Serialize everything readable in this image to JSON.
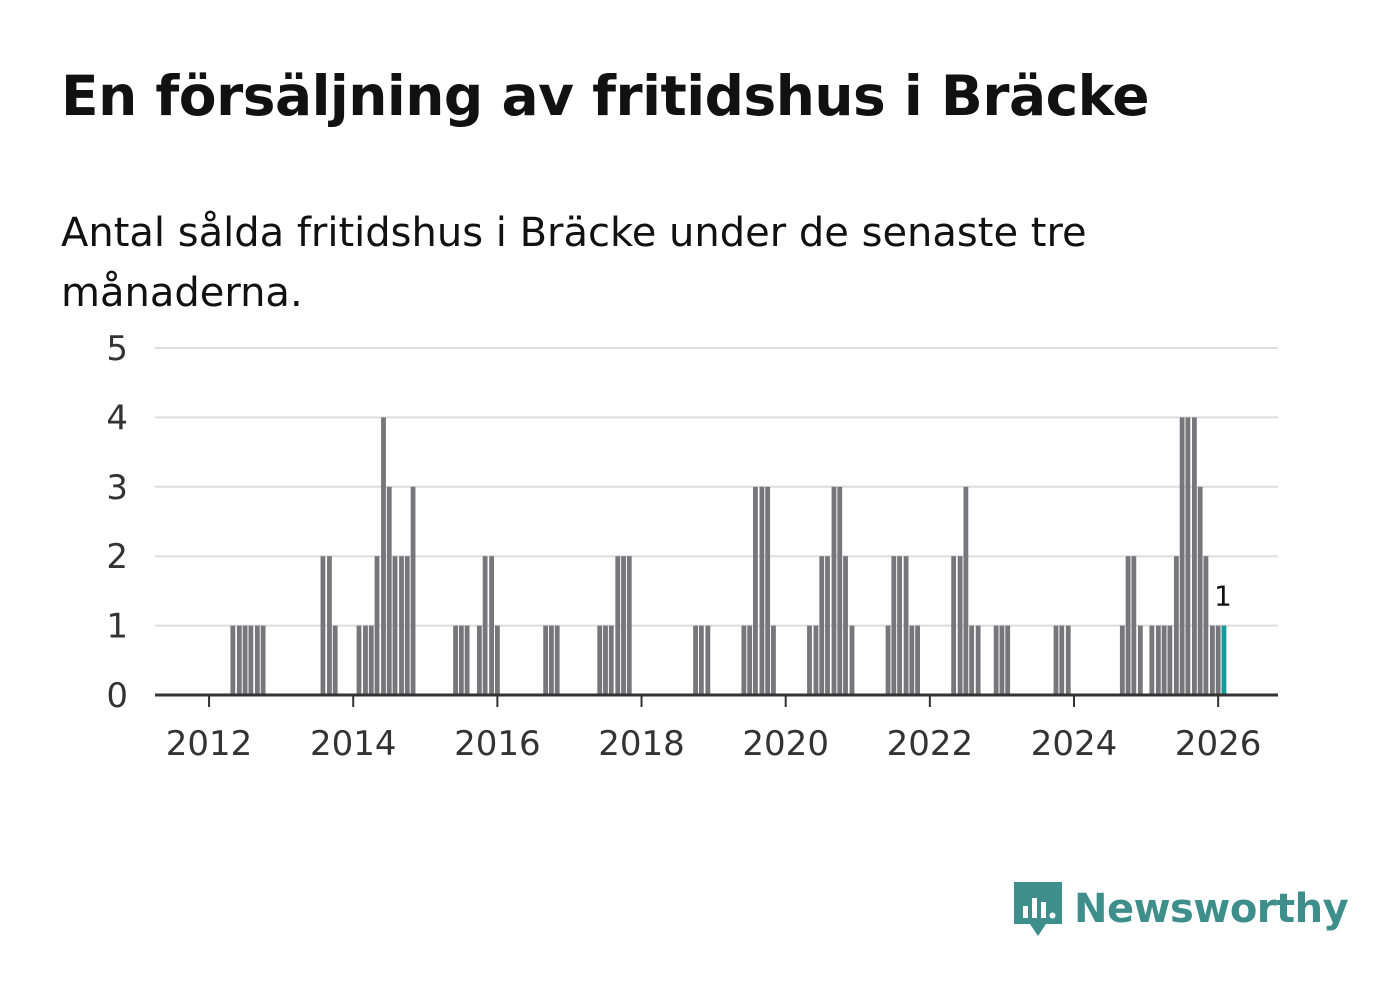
{
  "title": "En försäljning av fritidshus i Bräcke",
  "subtitle": "Antal sålda fritidshus i Bräcke under de senaste tre månaderna.",
  "brand": {
    "name": "Newsworthy",
    "icon": "newsworthy-logo-icon",
    "color": "#3e8e8c"
  },
  "colors": {
    "bar": "#76767b",
    "highlight": "#149a9a",
    "grid": "#dddddd",
    "axis": "#333333"
  },
  "chart_data": {
    "type": "bar",
    "title": "En försäljning av fritidshus i Bräcke",
    "subtitle": "Antal sålda fritidshus i Bräcke under de senaste tre månaderna.",
    "xlabel": "",
    "ylabel": "",
    "ylim": [
      0,
      5
    ],
    "yticks": [
      0,
      1,
      2,
      3,
      4,
      5
    ],
    "xlim": [
      2011.25,
      2026.83
    ],
    "xticks": [
      "2012",
      "2014",
      "2016",
      "2018",
      "2020",
      "2022",
      "2024",
      "2026"
    ],
    "grid": true,
    "highlight": {
      "x": 2026.08,
      "value": 1,
      "label": "1"
    },
    "series": [
      {
        "x": [
          2012.33,
          2012.42,
          2012.5,
          2012.58,
          2012.67,
          2012.75,
          2013.58,
          2013.67,
          2013.75,
          2014.08,
          2014.17,
          2014.25,
          2014.33,
          2014.42,
          2014.5,
          2014.58,
          2014.67,
          2014.75,
          2014.83,
          2014.92,
          2015.42,
          2015.5,
          2015.58,
          2015.75,
          2015.83,
          2015.92,
          2016.0,
          2016.67,
          2016.75,
          2016.83,
          2017.42,
          2017.5,
          2017.58,
          2017.67,
          2017.75,
          2017.83,
          2018.75,
          2018.83,
          2018.92,
          2019.42,
          2019.5,
          2019.58,
          2019.67,
          2019.75,
          2019.83,
          2020.33,
          2020.42,
          2020.5,
          2020.58,
          2020.67,
          2020.75,
          2020.83,
          2020.92,
          2021.42,
          2021.5,
          2021.58,
          2021.67,
          2021.75,
          2021.83,
          2022.33,
          2022.42,
          2022.5,
          2022.58,
          2022.67,
          2022.92,
          2023.0,
          2023.08,
          2023.75,
          2023.83,
          2023.92,
          2024.67,
          2024.75,
          2024.83,
          2024.92,
          2025.08,
          2025.17,
          2025.25,
          2025.33,
          2025.42,
          2025.5,
          2025.58,
          2025.67,
          2025.75,
          2025.83,
          2025.92,
          2026.0,
          2026.08
        ],
        "values": [
          1,
          1,
          1,
          1,
          1,
          1,
          2,
          2,
          1,
          1,
          1,
          1,
          2,
          4,
          3,
          2,
          2,
          2,
          3,
          0,
          1,
          1,
          1,
          1,
          2,
          2,
          1,
          1,
          1,
          1,
          1,
          1,
          1,
          2,
          2,
          2,
          1,
          1,
          1,
          1,
          1,
          3,
          3,
          3,
          1,
          1,
          1,
          2,
          2,
          3,
          3,
          2,
          1,
          1,
          2,
          2,
          2,
          1,
          1,
          2,
          2,
          3,
          1,
          1,
          1,
          1,
          1,
          1,
          1,
          1,
          1,
          2,
          2,
          1,
          1,
          1,
          1,
          1,
          2,
          4,
          4,
          4,
          3,
          2,
          1,
          1,
          1
        ]
      }
    ]
  }
}
